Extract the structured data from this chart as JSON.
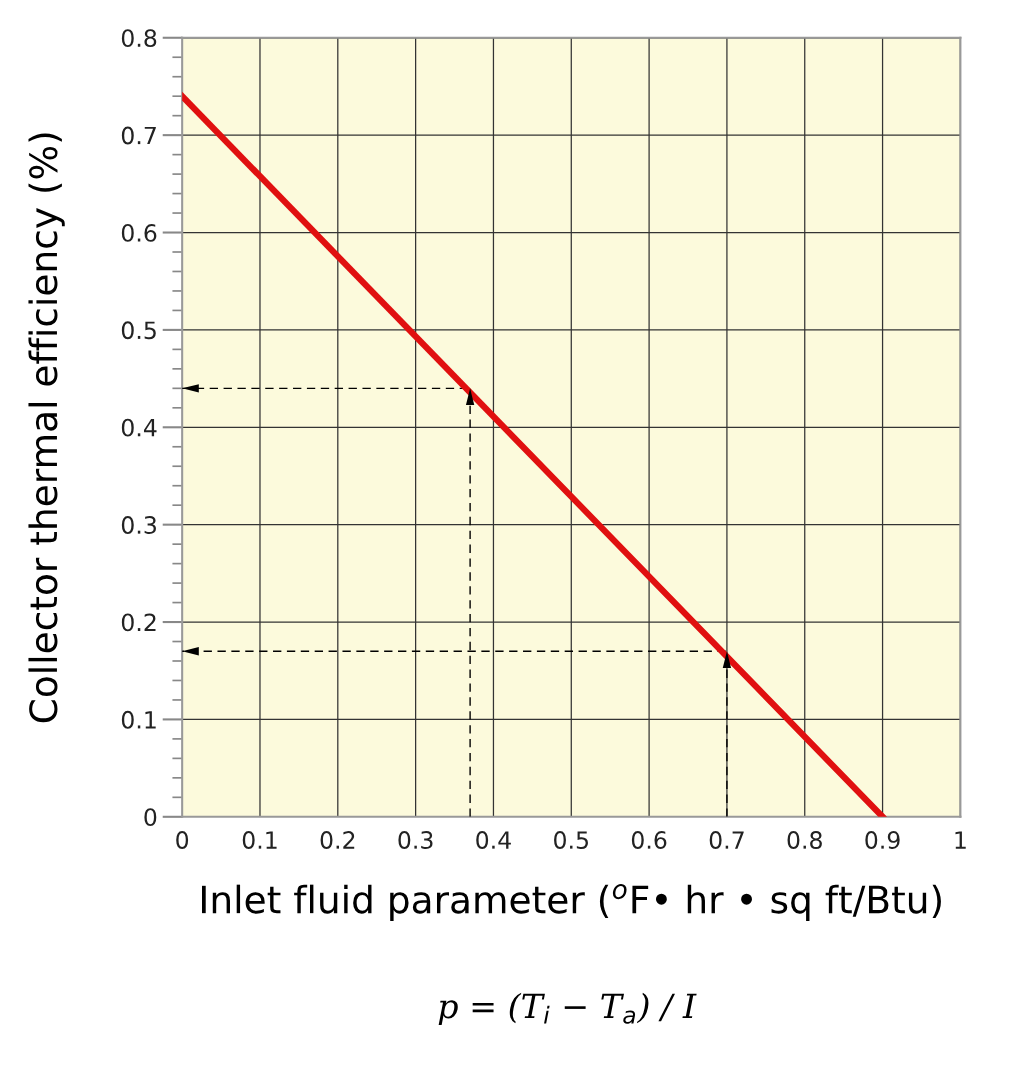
{
  "chart_data": {
    "type": "line",
    "xlabel": "Inlet fluid parameter ($^{o}$F• hr • sq ft/Btu)",
    "ylabel": "Collector thermal efficiency (%)",
    "series": [
      {
        "x": [
          0,
          0.9
        ],
        "values": [
          0.74,
          0
        ],
        "color": "#e01010",
        "line_style": "solid"
      },
      {
        "x": [
          0.37,
          0.37,
          0
        ],
        "values": [
          0,
          0.44,
          0.44
        ],
        "color": "#000000",
        "line_style": "dashed"
      },
      {
        "x": [
          0.7,
          0.7,
          0
        ],
        "values": [
          0,
          0.17,
          0.17
        ],
        "color": "#000000",
        "line_style": "dashed"
      }
    ],
    "xlim": [
      0,
      1
    ],
    "ylim": [
      0,
      0.8
    ],
    "xticks": [
      0,
      0.1,
      0.2,
      0.3,
      0.4,
      0.5,
      0.6,
      0.7,
      0.8,
      0.9,
      1
    ],
    "yticks": [
      0,
      {
        "value": 0.02,
        "label": null
      },
      {
        "value": 0.04,
        "label": null
      },
      {
        "value": 0.06,
        "label": null
      },
      {
        "value": 0.08,
        "label": null
      },
      0.1,
      {
        "value": 0.12,
        "label": null
      },
      {
        "value": 0.14,
        "label": null
      },
      {
        "value": 0.16,
        "label": null
      },
      {
        "value": 0.18,
        "label": null
      },
      0.2,
      {
        "value": 0.22,
        "label": null
      },
      {
        "value": 0.24,
        "label": null
      },
      {
        "value": 0.26,
        "label": null
      },
      {
        "value": 0.28,
        "label": null
      },
      0.3,
      {
        "value": 0.32,
        "label": null
      },
      {
        "value": 0.34,
        "label": null
      },
      {
        "value": 0.36,
        "label": null
      },
      {
        "value": 0.38,
        "label": null
      },
      0.4,
      {
        "value": 0.42,
        "label": null
      },
      {
        "value": 0.44,
        "label": null
      },
      {
        "value": 0.46,
        "label": null
      },
      {
        "value": 0.48,
        "label": null
      },
      0.5,
      {
        "value": 0.52,
        "label": null
      },
      {
        "value": 0.54,
        "label": null
      },
      {
        "value": 0.56,
        "label": null
      },
      {
        "value": 0.58,
        "label": null
      },
      0.6,
      {
        "value": 0.62,
        "label": null
      },
      {
        "value": 0.64,
        "label": null
      },
      {
        "value": 0.66,
        "label": null
      },
      {
        "value": 0.68,
        "label": null
      },
      0.7,
      {
        "value": 0.72,
        "label": null
      },
      {
        "value": 0.74,
        "label": null
      },
      {
        "value": 0.76,
        "label": null
      },
      {
        "value": 0.78,
        "label": null
      },
      0.8
    ],
    "grid": true,
    "annotations": [
      "p = (T$_{i}$ − T$_{a}$) / I"
    ]
  }
}
